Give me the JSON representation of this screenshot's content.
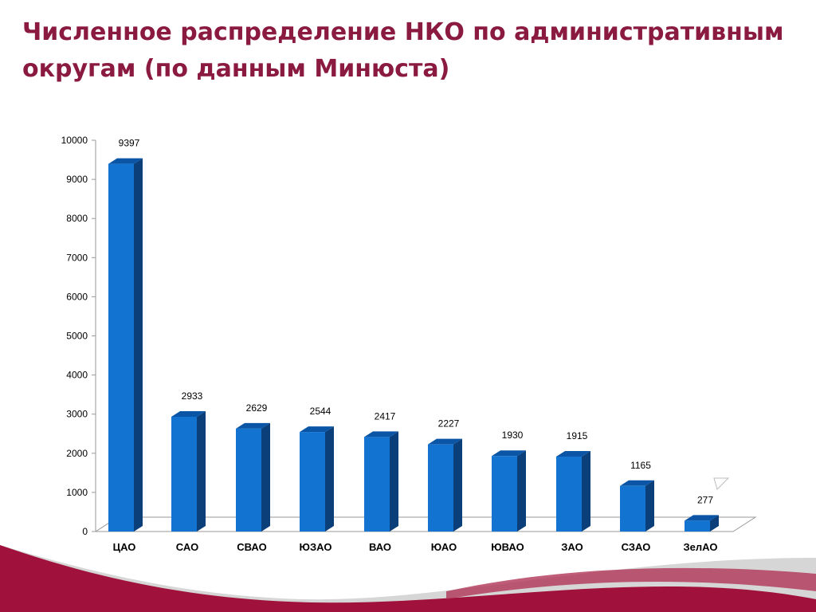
{
  "slide": {
    "title": "Численное распределение НКО по административным округам (по данным Минюста)"
  },
  "colors": {
    "title": "#8b1a40",
    "bar_front": "#1373d0",
    "bar_side": "#0a3f7a",
    "bar_top": "#0b55a6",
    "wave_dark": "#a0123c",
    "wave_light": "#c9c9c9"
  },
  "chart_data": {
    "type": "bar",
    "categories": [
      "ЦАО",
      "САО",
      "СВАО",
      "ЮЗАО",
      "ВАО",
      "ЮАО",
      "ЮВАО",
      "ЗАО",
      "СЗАО",
      "ЗелАО"
    ],
    "values": [
      9397,
      2933,
      2629,
      2544,
      2417,
      2227,
      1930,
      1915,
      1165,
      277
    ],
    "title": "",
    "xlabel": "",
    "ylabel": "",
    "ylim": [
      0,
      10000
    ],
    "yticks": [
      0,
      1000,
      2000,
      3000,
      4000,
      5000,
      6000,
      7000,
      8000,
      9000,
      10000
    ],
    "grid": false,
    "legend": "none",
    "data_labels": true
  }
}
